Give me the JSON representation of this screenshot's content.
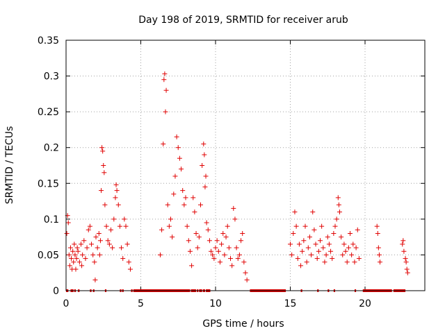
{
  "chart_data": {
    "type": "scatter",
    "title": "Day 198 of 2019, SRMTID for receiver arub",
    "xlabel": "GPS time / hours",
    "ylabel": "SRMTID / TECUs",
    "xlim": [
      0,
      24
    ],
    "ylim": [
      0,
      0.35
    ],
    "xticks": [
      {
        "value": 0,
        "label": "0"
      },
      {
        "value": 5,
        "label": "5"
      },
      {
        "value": 10,
        "label": "10"
      },
      {
        "value": 15,
        "label": "15"
      },
      {
        "value": 20,
        "label": "20"
      }
    ],
    "yticks": [
      {
        "value": 0,
        "label": "0"
      },
      {
        "value": 0.05,
        "label": "0.05"
      },
      {
        "value": 0.1,
        "label": "0.1"
      },
      {
        "value": 0.15,
        "label": "0.15"
      },
      {
        "value": 0.2,
        "label": "0.2"
      },
      {
        "value": 0.25,
        "label": "0.25"
      },
      {
        "value": 0.3,
        "label": "0.3"
      },
      {
        "value": 0.35,
        "label": "0.35"
      }
    ],
    "grid": true,
    "marker": "+",
    "color": "#e00000",
    "series": [
      {
        "name": "SRMTID",
        "points": [
          [
            0.05,
            0.08
          ],
          [
            0.1,
            0.105
          ],
          [
            0.15,
            0.095
          ],
          [
            0.2,
            0.05
          ],
          [
            0.25,
            0.035
          ],
          [
            0.3,
            0.06
          ],
          [
            0.35,
            0.045
          ],
          [
            0.4,
            0.03
          ],
          [
            0.45,
            0.055
          ],
          [
            0.5,
            0.04
          ],
          [
            0.55,
            0.065
          ],
          [
            0.6,
            0.05
          ],
          [
            0.65,
            0.03
          ],
          [
            0.7,
            0.045
          ],
          [
            0.75,
            0.06
          ],
          [
            0.8,
            0.055
          ],
          [
            0.9,
            0.04
          ],
          [
            1.0,
            0.065
          ],
          [
            1.05,
            0.035
          ],
          [
            1.1,
            0.05
          ],
          [
            1.2,
            0.07
          ],
          [
            1.3,
            0.045
          ],
          [
            1.4,
            0.06
          ],
          [
            1.5,
            0.085
          ],
          [
            1.6,
            0.09
          ],
          [
            1.7,
            0.065
          ],
          [
            1.8,
            0.05
          ],
          [
            1.9,
            0.04
          ],
          [
            1.95,
            0.015
          ],
          [
            2.0,
            0.075
          ],
          [
            2.1,
            0.06
          ],
          [
            2.2,
            0.08
          ],
          [
            2.25,
            0.05
          ],
          [
            2.3,
            0.07
          ],
          [
            2.35,
            0.14
          ],
          [
            2.4,
            0.2
          ],
          [
            2.45,
            0.195
          ],
          [
            2.5,
            0.175
          ],
          [
            2.55,
            0.165
          ],
          [
            2.6,
            0.12
          ],
          [
            2.7,
            0.09
          ],
          [
            2.8,
            0.07
          ],
          [
            2.9,
            0.065
          ],
          [
            3.0,
            0.085
          ],
          [
            3.1,
            0.06
          ],
          [
            3.2,
            0.1
          ],
          [
            3.3,
            0.13
          ],
          [
            3.35,
            0.148
          ],
          [
            3.4,
            0.14
          ],
          [
            3.5,
            0.12
          ],
          [
            3.6,
            0.09
          ],
          [
            3.7,
            0.06
          ],
          [
            3.8,
            0.045
          ],
          [
            3.9,
            0.1
          ],
          [
            4.0,
            0.09
          ],
          [
            4.1,
            0.065
          ],
          [
            4.2,
            0.04
          ],
          [
            4.3,
            0.03
          ],
          [
            6.3,
            0.05
          ],
          [
            6.4,
            0.085
          ],
          [
            6.5,
            0.205
          ],
          [
            6.55,
            0.295
          ],
          [
            6.6,
            0.303
          ],
          [
            6.65,
            0.25
          ],
          [
            6.7,
            0.28
          ],
          [
            6.8,
            0.12
          ],
          [
            6.9,
            0.09
          ],
          [
            7.0,
            0.1
          ],
          [
            7.1,
            0.075
          ],
          [
            7.2,
            0.135
          ],
          [
            7.3,
            0.16
          ],
          [
            7.4,
            0.215
          ],
          [
            7.5,
            0.2
          ],
          [
            7.6,
            0.185
          ],
          [
            7.7,
            0.17
          ],
          [
            7.8,
            0.14
          ],
          [
            7.9,
            0.12
          ],
          [
            8.0,
            0.13
          ],
          [
            8.1,
            0.09
          ],
          [
            8.2,
            0.07
          ],
          [
            8.3,
            0.055
          ],
          [
            8.4,
            0.035
          ],
          [
            8.5,
            0.13
          ],
          [
            8.6,
            0.11
          ],
          [
            8.7,
            0.08
          ],
          [
            8.8,
            0.06
          ],
          [
            8.9,
            0.075
          ],
          [
            9.0,
            0.12
          ],
          [
            9.1,
            0.175
          ],
          [
            9.2,
            0.205
          ],
          [
            9.25,
            0.19
          ],
          [
            9.3,
            0.145
          ],
          [
            9.35,
            0.16
          ],
          [
            9.4,
            0.095
          ],
          [
            9.5,
            0.085
          ],
          [
            9.6,
            0.07
          ],
          [
            9.7,
            0.055
          ],
          [
            9.8,
            0.05
          ],
          [
            9.9,
            0.045
          ],
          [
            10.0,
            0.06
          ],
          [
            10.1,
            0.07
          ],
          [
            10.2,
            0.055
          ],
          [
            10.3,
            0.04
          ],
          [
            10.4,
            0.065
          ],
          [
            10.5,
            0.08
          ],
          [
            10.6,
            0.05
          ],
          [
            10.7,
            0.075
          ],
          [
            10.8,
            0.09
          ],
          [
            10.9,
            0.06
          ],
          [
            11.0,
            0.045
          ],
          [
            11.1,
            0.035
          ],
          [
            11.2,
            0.115
          ],
          [
            11.3,
            0.1
          ],
          [
            11.4,
            0.06
          ],
          [
            11.5,
            0.045
          ],
          [
            11.6,
            0.05
          ],
          [
            11.7,
            0.07
          ],
          [
            11.8,
            0.08
          ],
          [
            11.9,
            0.04
          ],
          [
            12.0,
            0.025
          ],
          [
            12.1,
            0.015
          ],
          [
            15.0,
            0.065
          ],
          [
            15.1,
            0.05
          ],
          [
            15.2,
            0.08
          ],
          [
            15.3,
            0.11
          ],
          [
            15.4,
            0.09
          ],
          [
            15.5,
            0.045
          ],
          [
            15.6,
            0.065
          ],
          [
            15.7,
            0.035
          ],
          [
            15.8,
            0.055
          ],
          [
            15.9,
            0.07
          ],
          [
            16.0,
            0.09
          ],
          [
            16.1,
            0.04
          ],
          [
            16.2,
            0.06
          ],
          [
            16.3,
            0.075
          ],
          [
            16.4,
            0.05
          ],
          [
            16.5,
            0.11
          ],
          [
            16.6,
            0.085
          ],
          [
            16.7,
            0.065
          ],
          [
            16.8,
            0.045
          ],
          [
            16.9,
            0.055
          ],
          [
            17.0,
            0.07
          ],
          [
            17.1,
            0.09
          ],
          [
            17.2,
            0.06
          ],
          [
            17.3,
            0.04
          ],
          [
            17.4,
            0.05
          ],
          [
            17.5,
            0.075
          ],
          [
            17.6,
            0.065
          ],
          [
            17.7,
            0.055
          ],
          [
            17.8,
            0.045
          ],
          [
            17.9,
            0.08
          ],
          [
            18.0,
            0.09
          ],
          [
            18.1,
            0.1
          ],
          [
            18.2,
            0.13
          ],
          [
            18.25,
            0.12
          ],
          [
            18.3,
            0.11
          ],
          [
            18.4,
            0.075
          ],
          [
            18.5,
            0.05
          ],
          [
            18.6,
            0.065
          ],
          [
            18.7,
            0.055
          ],
          [
            18.8,
            0.04
          ],
          [
            18.9,
            0.06
          ],
          [
            19.0,
            0.08
          ],
          [
            19.1,
            0.05
          ],
          [
            19.2,
            0.065
          ],
          [
            19.3,
            0.04
          ],
          [
            19.4,
            0.06
          ],
          [
            19.5,
            0.085
          ],
          [
            19.6,
            0.045
          ],
          [
            20.8,
            0.09
          ],
          [
            20.85,
            0.08
          ],
          [
            20.9,
            0.06
          ],
          [
            20.95,
            0.05
          ],
          [
            21.0,
            0.04
          ],
          [
            22.5,
            0.065
          ],
          [
            22.55,
            0.07
          ],
          [
            22.6,
            0.055
          ],
          [
            22.7,
            0.045
          ],
          [
            22.75,
            0.04
          ],
          [
            22.8,
            0.03
          ],
          [
            22.85,
            0.025
          ]
        ],
        "zero_ranges": [
          [
            0.0,
            0.15
          ],
          [
            0.3,
            0.5
          ],
          [
            0.55,
            0.65
          ],
          [
            0.8,
            0.9
          ],
          [
            1.6,
            1.7
          ],
          [
            1.8,
            1.9
          ],
          [
            2.6,
            2.7
          ],
          [
            3.6,
            3.7
          ],
          [
            3.75,
            3.85
          ],
          [
            4.35,
            4.45
          ],
          [
            4.5,
            8.3
          ],
          [
            8.35,
            8.7
          ],
          [
            8.75,
            8.85
          ],
          [
            8.9,
            9.1
          ],
          [
            9.15,
            9.3
          ],
          [
            9.35,
            9.65
          ],
          [
            12.3,
            14.7
          ],
          [
            15.7,
            15.8
          ],
          [
            16.8,
            16.9
          ],
          [
            17.5,
            17.6
          ],
          [
            17.9,
            18.0
          ],
          [
            19.3,
            19.4
          ],
          [
            19.85,
            21.8
          ],
          [
            21.9,
            22.7
          ]
        ]
      }
    ]
  }
}
